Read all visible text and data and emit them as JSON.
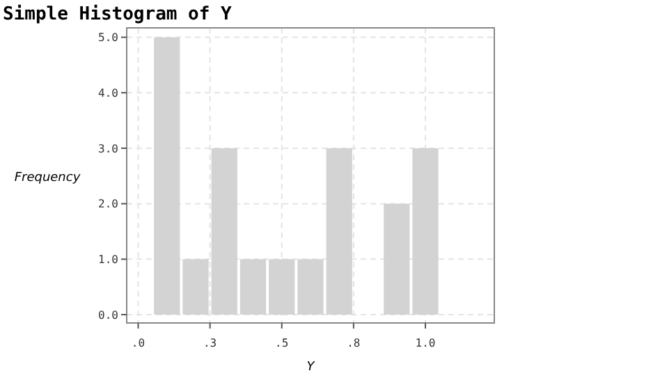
{
  "chart_data": {
    "type": "histogram",
    "title": "Simple Histogram of Y",
    "xlabel": "Y",
    "ylabel": "Frequency",
    "bins": [
      0.05,
      0.15,
      0.25,
      0.35,
      0.45,
      0.55,
      0.65,
      0.75,
      0.85,
      0.95,
      1.05
    ],
    "values": [
      5,
      1,
      3,
      1,
      1,
      1,
      3,
      0,
      2,
      3
    ],
    "color": "#d3d3d3",
    "xlim": [
      -0.04,
      1.24
    ],
    "xticks": [
      {
        "value": 0,
        "label": ".0"
      },
      {
        "value": 0.25,
        "label": ".3"
      },
      {
        "value": 0.5,
        "label": ".5"
      },
      {
        "value": 0.75,
        "label": ".8"
      },
      {
        "value": 1,
        "label": "1.0"
      }
    ],
    "ylim": [
      -0.15,
      5.17
    ],
    "yticks": [
      {
        "value": 0,
        "label": "0.0"
      },
      {
        "value": 1,
        "label": "1.0"
      },
      {
        "value": 2,
        "label": "2.0"
      },
      {
        "value": 3,
        "label": "3.0"
      },
      {
        "value": 4,
        "label": "4.0"
      },
      {
        "value": 5,
        "label": "5.0"
      }
    ],
    "grid": true
  }
}
